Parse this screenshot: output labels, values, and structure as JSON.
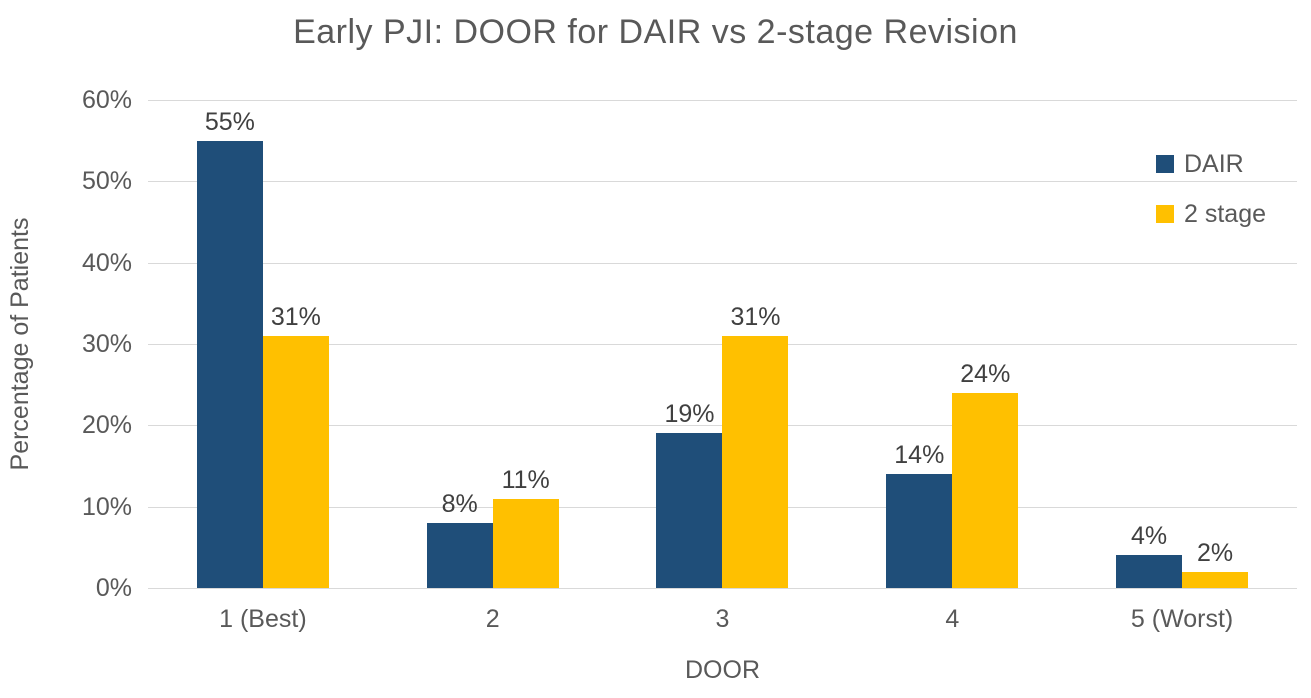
{
  "chart_data": {
    "type": "bar",
    "title": "Early PJI: DOOR for DAIR vs 2-stage Revision",
    "categories": [
      "1 (Best)",
      "2",
      "3",
      "4",
      "5 (Worst)"
    ],
    "series": [
      {
        "name": "DAIR",
        "color": "#1F4E79",
        "values": [
          55,
          8,
          19,
          14,
          4
        ],
        "data_labels": [
          "55%",
          "8%",
          "19%",
          "14%",
          "4%"
        ]
      },
      {
        "name": "2 stage",
        "color": "#FFC000",
        "values": [
          31,
          11,
          31,
          24,
          2
        ],
        "data_labels": [
          "31%",
          "11%",
          "31%",
          "24%",
          "2%"
        ]
      }
    ],
    "xlabel": "DOOR",
    "ylabel": "Percentage of Patients",
    "ylim": [
      0,
      60
    ],
    "yticks": [
      0,
      10,
      20,
      30,
      40,
      50,
      60
    ],
    "ytick_labels": [
      "0%",
      "10%",
      "20%",
      "30%",
      "40%",
      "50%",
      "60%"
    ],
    "grid": true,
    "legend_position": "inside-top-right",
    "colors": {
      "gridline": "#D9D9D9",
      "axis_text": "#595959",
      "title_text": "#595959",
      "data_label_text": "#404040",
      "background": "#FFFFFF"
    }
  }
}
